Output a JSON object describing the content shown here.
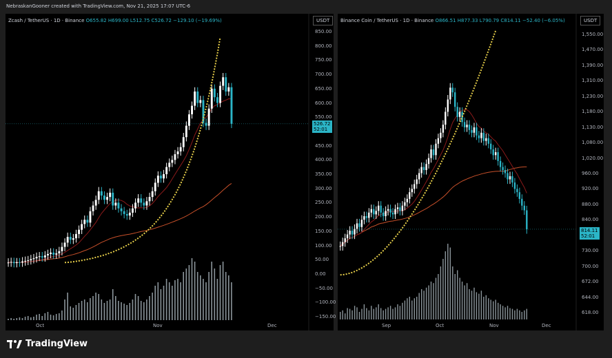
{
  "header": {
    "credit": "NebraskanGooner created with TradingView.com, Nov 21, 2025 17:07 UTC-6"
  },
  "footer": {
    "brand": "TradingView"
  },
  "colors": {
    "up": "#ffffff",
    "down": "#2bb5c7",
    "bg": "#000000",
    "parabola": "#e8d04a",
    "ma_short": "#8b1a1a",
    "ma_long": "#c8502a",
    "volume": "#b9c7cf"
  },
  "left": {
    "title_prefix": "Zcash / TetherUS · 1D · Binance",
    "o": "O655.82",
    "h": "H699.00",
    "l": "L512.75",
    "c": "C526.72",
    "chg": "−129.10 (−19.69%)",
    "unit": "USDT",
    "price_label": "526.72",
    "timer_label": "52:01",
    "y_ticks": [
      "850.00",
      "800.00",
      "750.00",
      "700.00",
      "650.00",
      "600.00",
      "550.00",
      "500.00",
      "450.00",
      "400.00",
      "350.00",
      "300.00",
      "250.00",
      "200.00",
      "150.00",
      "100.00",
      "50.00",
      "0.00",
      "−50.00",
      "−100.00",
      "−150.00"
    ],
    "x_ticks": [
      "Oct",
      "Nov",
      "Dec"
    ]
  },
  "right": {
    "title_prefix": "Binance Coin / TetherUS · 1D · Binance",
    "o": "O866.51",
    "h": "H877.33",
    "l": "L790.79",
    "c": "C814.11",
    "chg": "−52.40 (−6.05%)",
    "unit": "USDT",
    "price_label": "814.11",
    "timer_label": "52:01",
    "y_ticks": [
      "1,550.00",
      "1,470.00",
      "1,390.00",
      "1,310.00",
      "1,230.00",
      "1,180.00",
      "1,130.00",
      "1,080.00",
      "1,020.00",
      "960.00",
      "920.00",
      "880.00",
      "840.00",
      "760.00",
      "730.00",
      "700.00",
      "672.00",
      "644.00",
      "618.00"
    ],
    "x_ticks": [
      "Sep",
      "Oct",
      "Nov",
      "Dec"
    ]
  },
  "chart_data": [
    {
      "type": "candlestick",
      "symbol": "ZECUSDT",
      "scale": "linear",
      "ylim": [
        -150,
        850
      ],
      "close": [
        40,
        42,
        38,
        41,
        40,
        44,
        46,
        48,
        52,
        55,
        60,
        62,
        58,
        65,
        70,
        75,
        68,
        72,
        80,
        95,
        110,
        130,
        120,
        125,
        140,
        155,
        175,
        190,
        180,
        220,
        240,
        260,
        290,
        275,
        260,
        270,
        285,
        240,
        250,
        230,
        220,
        210,
        205,
        215,
        230,
        250,
        265,
        250,
        240,
        255,
        270,
        290,
        320,
        345,
        335,
        350,
        375,
        390,
        400,
        420,
        430,
        445,
        480,
        520,
        560,
        590,
        640,
        600,
        610,
        530,
        520,
        580,
        650,
        620,
        600,
        660,
        690,
        640,
        655,
        526.72
      ],
      "volume": [
        2,
        3,
        2,
        3,
        4,
        3,
        5,
        6,
        4,
        5,
        8,
        9,
        6,
        10,
        12,
        8,
        7,
        9,
        10,
        14,
        30,
        40,
        20,
        18,
        22,
        25,
        28,
        30,
        26,
        32,
        35,
        40,
        38,
        30,
        25,
        28,
        30,
        45,
        35,
        28,
        26,
        24,
        22,
        25,
        30,
        38,
        35,
        28,
        26,
        30,
        35,
        40,
        50,
        55,
        45,
        50,
        60,
        55,
        50,
        58,
        60,
        55,
        70,
        75,
        80,
        90,
        85,
        70,
        65,
        60,
        55,
        70,
        85,
        75,
        60,
        80,
        85,
        70,
        65,
        55
      ]
    },
    {
      "type": "candlestick",
      "symbol": "BNBUSDT",
      "scale": "log",
      "ylim": [
        618,
        1550
      ],
      "close": [
        770,
        780,
        790,
        800,
        810,
        800,
        815,
        830,
        820,
        840,
        850,
        845,
        860,
        870,
        855,
        865,
        880,
        860,
        850,
        865,
        870,
        860,
        855,
        870,
        875,
        865,
        880,
        890,
        900,
        920,
        930,
        945,
        960,
        980,
        1000,
        990,
        1010,
        1030,
        1060,
        1040,
        1080,
        1100,
        1120,
        1150,
        1200,
        1250,
        1300,
        1280,
        1220,
        1180,
        1200,
        1160,
        1140,
        1150,
        1130,
        1120,
        1140,
        1110,
        1100,
        1120,
        1090,
        1100,
        1080,
        1060,
        1040,
        1050,
        1020,
        1000,
        990,
        980,
        960,
        970,
        950,
        930,
        920,
        900,
        880,
        866.51,
        814.11
      ],
      "volume": [
        10,
        12,
        8,
        15,
        14,
        12,
        18,
        16,
        10,
        14,
        20,
        15,
        12,
        18,
        14,
        16,
        20,
        15,
        12,
        14,
        16,
        18,
        14,
        16,
        20,
        18,
        22,
        25,
        28,
        30,
        25,
        28,
        30,
        35,
        40,
        38,
        42,
        45,
        50,
        48,
        55,
        60,
        70,
        80,
        90,
        100,
        95,
        70,
        60,
        65,
        55,
        50,
        45,
        48,
        40,
        38,
        42,
        36,
        34,
        38,
        30,
        32,
        28,
        26,
        24,
        26,
        22,
        20,
        18,
        16,
        18,
        15,
        14,
        12,
        14,
        12,
        10,
        12,
        14
      ]
    }
  ]
}
